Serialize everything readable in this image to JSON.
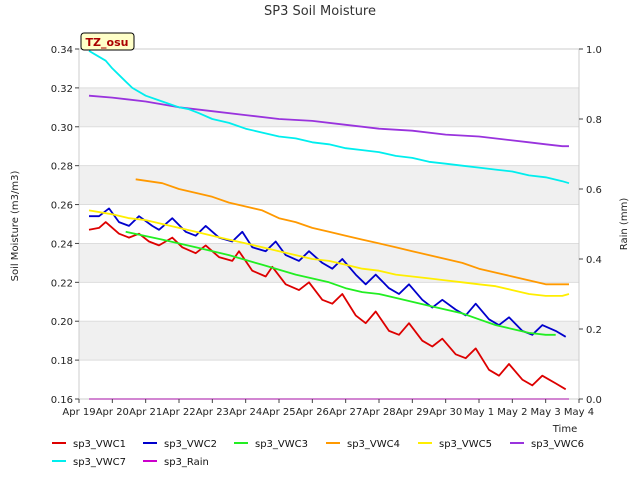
{
  "chart_data": {
    "type": "line",
    "title": "SP3 Soil Moisture",
    "xlabel": "Time",
    "ylabel": "Soil Moisture (m3/m3)",
    "y2label": "Rain (mm)",
    "annotation": "TZ_osu",
    "ylim": [
      0.16,
      0.34
    ],
    "y2lim": [
      0.0,
      1.0
    ],
    "xlim": [
      0,
      15
    ],
    "yticks": [
      0.16,
      0.18,
      0.2,
      0.22,
      0.24,
      0.26,
      0.28,
      0.3,
      0.32,
      0.34
    ],
    "y2ticks": [
      0.0,
      0.2,
      0.4,
      0.6,
      0.8,
      1.0
    ],
    "xtick_labels": [
      "Apr 19",
      "Apr 20",
      "Apr 21",
      "Apr 22",
      "Apr 23",
      "Apr 24",
      "Apr 25",
      "Apr 26",
      "Apr 27",
      "Apr 28",
      "Apr 29",
      "Apr 30",
      "May 1",
      "May 2",
      "May 3",
      "May 4"
    ],
    "series": [
      {
        "name": "sp3_VWC1",
        "color": "#dd0000",
        "axis": "left",
        "sawtooth": true,
        "x": [
          0.3,
          0.6,
          0.8,
          1.2,
          1.5,
          1.8,
          2.1,
          2.4,
          2.8,
          3.1,
          3.5,
          3.8,
          4.2,
          4.6,
          4.8,
          5.2,
          5.6,
          5.8,
          6.2,
          6.6,
          6.9,
          7.3,
          7.6,
          7.9,
          8.3,
          8.6,
          8.9,
          9.3,
          9.6,
          9.9,
          10.3,
          10.6,
          10.9,
          11.3,
          11.6,
          11.9,
          12.3,
          12.6,
          12.9,
          13.3,
          13.6,
          13.9,
          14.3,
          14.6
        ],
        "values": [
          0.247,
          0.248,
          0.251,
          0.245,
          0.243,
          0.245,
          0.241,
          0.239,
          0.243,
          0.238,
          0.235,
          0.239,
          0.233,
          0.231,
          0.236,
          0.226,
          0.223,
          0.228,
          0.219,
          0.216,
          0.22,
          0.211,
          0.209,
          0.214,
          0.203,
          0.199,
          0.205,
          0.195,
          0.193,
          0.199,
          0.19,
          0.187,
          0.191,
          0.183,
          0.181,
          0.186,
          0.175,
          0.172,
          0.178,
          0.17,
          0.167,
          0.172,
          0.168,
          0.165
        ]
      },
      {
        "name": "sp3_VWC2",
        "color": "#0000cc",
        "axis": "left",
        "sawtooth": true,
        "x": [
          0.3,
          0.6,
          0.9,
          1.2,
          1.5,
          1.8,
          2.2,
          2.4,
          2.8,
          3.2,
          3.5,
          3.8,
          4.2,
          4.6,
          4.9,
          5.2,
          5.6,
          5.9,
          6.2,
          6.6,
          6.9,
          7.3,
          7.6,
          7.9,
          8.3,
          8.6,
          8.9,
          9.3,
          9.6,
          9.9,
          10.3,
          10.6,
          10.9,
          11.3,
          11.6,
          11.9,
          12.3,
          12.6,
          12.9,
          13.3,
          13.6,
          13.9,
          14.3,
          14.6
        ],
        "values": [
          0.254,
          0.254,
          0.258,
          0.251,
          0.249,
          0.254,
          0.249,
          0.247,
          0.253,
          0.246,
          0.244,
          0.249,
          0.243,
          0.241,
          0.246,
          0.238,
          0.236,
          0.241,
          0.234,
          0.231,
          0.236,
          0.23,
          0.227,
          0.232,
          0.224,
          0.219,
          0.224,
          0.217,
          0.214,
          0.219,
          0.211,
          0.207,
          0.211,
          0.206,
          0.203,
          0.209,
          0.201,
          0.198,
          0.202,
          0.195,
          0.193,
          0.198,
          0.195,
          0.192
        ]
      },
      {
        "name": "sp3_VWC3",
        "color": "#22ee22",
        "axis": "left",
        "sawtooth": false,
        "x": [
          1.4,
          2.5,
          3.5,
          4.5,
          5.5,
          6.5,
          7.5,
          8.0,
          8.5,
          9.0,
          9.5,
          10.5,
          11.5,
          12.0,
          12.5,
          13.0,
          13.5,
          14.0,
          14.3
        ],
        "values": [
          0.246,
          0.242,
          0.238,
          0.234,
          0.229,
          0.224,
          0.22,
          0.217,
          0.215,
          0.214,
          0.212,
          0.208,
          0.204,
          0.201,
          0.198,
          0.196,
          0.194,
          0.193,
          0.193
        ]
      },
      {
        "name": "sp3_VWC4",
        "color": "#ff9900",
        "axis": "left",
        "sawtooth": false,
        "x": [
          1.7,
          2.5,
          3.0,
          3.5,
          4.0,
          4.5,
          5.0,
          5.5,
          6.0,
          6.5,
          7.0,
          7.5,
          8.0,
          8.5,
          9.0,
          9.5,
          10.0,
          10.5,
          11.0,
          11.5,
          12.0,
          12.5,
          13.0,
          13.5,
          14.0,
          14.5,
          14.7
        ],
        "values": [
          0.273,
          0.271,
          0.268,
          0.266,
          0.264,
          0.261,
          0.259,
          0.257,
          0.253,
          0.251,
          0.248,
          0.246,
          0.244,
          0.242,
          0.24,
          0.238,
          0.236,
          0.234,
          0.232,
          0.23,
          0.227,
          0.225,
          0.223,
          0.221,
          0.219,
          0.219,
          0.219
        ]
      },
      {
        "name": "sp3_VWC5",
        "color": "#ffee00",
        "axis": "left",
        "sawtooth": false,
        "x": [
          0.3,
          1.0,
          1.5,
          2.0,
          2.5,
          3.0,
          3.5,
          4.0,
          4.5,
          5.0,
          5.5,
          6.0,
          6.5,
          7.0,
          7.5,
          8.0,
          8.5,
          9.0,
          9.5,
          10.0,
          10.5,
          11.0,
          11.5,
          12.0,
          12.5,
          13.0,
          13.5,
          14.0,
          14.5,
          14.7
        ],
        "values": [
          0.257,
          0.255,
          0.253,
          0.252,
          0.25,
          0.248,
          0.246,
          0.244,
          0.242,
          0.24,
          0.238,
          0.236,
          0.234,
          0.232,
          0.231,
          0.229,
          0.227,
          0.226,
          0.224,
          0.223,
          0.222,
          0.221,
          0.22,
          0.219,
          0.218,
          0.216,
          0.214,
          0.213,
          0.213,
          0.214
        ]
      },
      {
        "name": "sp3_VWC6",
        "color": "#9933dd",
        "axis": "left",
        "sawtooth": false,
        "x": [
          0.3,
          1.0,
          2.0,
          3.0,
          4.0,
          5.0,
          6.0,
          7.0,
          8.0,
          9.0,
          10.0,
          11.0,
          12.0,
          13.0,
          13.5,
          14.0,
          14.5,
          14.7
        ],
        "values": [
          0.316,
          0.315,
          0.313,
          0.31,
          0.308,
          0.306,
          0.304,
          0.303,
          0.301,
          0.299,
          0.298,
          0.296,
          0.295,
          0.293,
          0.292,
          0.291,
          0.29,
          0.29
        ]
      },
      {
        "name": "sp3_VWC7",
        "color": "#00eeee",
        "axis": "left",
        "sawtooth": false,
        "x": [
          0.3,
          0.5,
          0.8,
          1.0,
          1.3,
          1.6,
          2.0,
          2.5,
          3.0,
          3.3,
          3.6,
          4.0,
          4.5,
          5.0,
          5.5,
          6.0,
          6.5,
          7.0,
          7.5,
          8.0,
          8.5,
          9.0,
          9.5,
          10.0,
          10.5,
          11.0,
          11.5,
          12.0,
          12.5,
          13.0,
          13.5,
          14.0,
          14.5,
          14.7
        ],
        "values": [
          0.339,
          0.337,
          0.334,
          0.33,
          0.325,
          0.32,
          0.316,
          0.313,
          0.31,
          0.309,
          0.307,
          0.304,
          0.302,
          0.299,
          0.297,
          0.295,
          0.294,
          0.292,
          0.291,
          0.289,
          0.288,
          0.287,
          0.285,
          0.284,
          0.282,
          0.281,
          0.28,
          0.279,
          0.278,
          0.277,
          0.275,
          0.274,
          0.272,
          0.271
        ]
      },
      {
        "name": "sp3_Rain",
        "color": "#cc00cc",
        "axis": "right",
        "sawtooth": false,
        "x": [
          0.3,
          14.7
        ],
        "values": [
          0.0,
          0.0
        ]
      }
    ]
  }
}
